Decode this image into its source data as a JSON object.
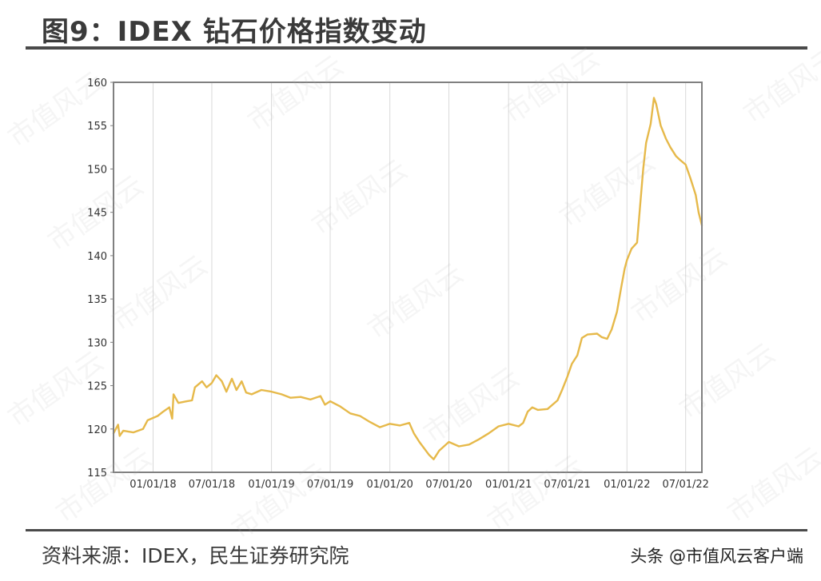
{
  "title": "图9：IDEX 钻石价格指数变动",
  "source": "资料来源：IDEX，民生证券研究院",
  "credit": "头条 @市值风云客户端",
  "watermark": "市值风云",
  "colors": {
    "line": "#E6B94A",
    "frame": "#808080",
    "grid": "#D9D9D9"
  },
  "chart_data": {
    "type": "line",
    "title": "",
    "xlabel": "",
    "ylabel": "",
    "ylim": [
      115,
      160
    ],
    "yticks": [
      115,
      120,
      125,
      130,
      135,
      140,
      145,
      150,
      155,
      160
    ],
    "x_range": [
      "2017-09-01",
      "2022-08-20"
    ],
    "xtick_labels": [
      "01/01/18",
      "07/01/18",
      "01/01/19",
      "07/01/19",
      "01/01/20",
      "07/01/20",
      "01/01/21",
      "07/01/21",
      "01/01/22",
      "07/01/22"
    ],
    "grid": "vertical",
    "series": [
      {
        "name": "",
        "points": [
          [
            "2017-09-01",
            119.5
          ],
          [
            "2017-09-15",
            120.5
          ],
          [
            "2017-09-20",
            119.2
          ],
          [
            "2017-10-01",
            119.8
          ],
          [
            "2017-11-01",
            119.6
          ],
          [
            "2017-12-01",
            120.0
          ],
          [
            "2017-12-15",
            121.0
          ],
          [
            "2018-01-15",
            121.5
          ],
          [
            "2018-02-01",
            122.0
          ],
          [
            "2018-02-20",
            122.5
          ],
          [
            "2018-03-01",
            121.2
          ],
          [
            "2018-03-05",
            124.0
          ],
          [
            "2018-03-20",
            123.0
          ],
          [
            "2018-04-15",
            123.2
          ],
          [
            "2018-05-01",
            123.3
          ],
          [
            "2018-05-10",
            124.8
          ],
          [
            "2018-06-01",
            125.5
          ],
          [
            "2018-06-15",
            124.8
          ],
          [
            "2018-07-01",
            125.3
          ],
          [
            "2018-07-15",
            126.2
          ],
          [
            "2018-08-01",
            125.5
          ],
          [
            "2018-08-15",
            124.3
          ],
          [
            "2018-09-01",
            125.8
          ],
          [
            "2018-09-15",
            124.5
          ],
          [
            "2018-10-01",
            125.5
          ],
          [
            "2018-10-15",
            124.2
          ],
          [
            "2018-11-01",
            124.0
          ],
          [
            "2018-12-01",
            124.5
          ],
          [
            "2019-01-01",
            124.3
          ],
          [
            "2019-02-01",
            124.0
          ],
          [
            "2019-03-01",
            123.6
          ],
          [
            "2019-04-01",
            123.7
          ],
          [
            "2019-05-01",
            123.4
          ],
          [
            "2019-06-01",
            123.8
          ],
          [
            "2019-06-15",
            122.8
          ],
          [
            "2019-07-01",
            123.2
          ],
          [
            "2019-08-01",
            122.6
          ],
          [
            "2019-09-01",
            121.8
          ],
          [
            "2019-10-01",
            121.5
          ],
          [
            "2019-11-01",
            120.8
          ],
          [
            "2019-12-01",
            120.2
          ],
          [
            "2020-01-01",
            120.6
          ],
          [
            "2020-02-01",
            120.4
          ],
          [
            "2020-03-01",
            120.7
          ],
          [
            "2020-03-15",
            119.5
          ],
          [
            "2020-04-01",
            118.5
          ],
          [
            "2020-05-01",
            117.0
          ],
          [
            "2020-05-15",
            116.5
          ],
          [
            "2020-06-01",
            117.5
          ],
          [
            "2020-07-01",
            118.5
          ],
          [
            "2020-08-01",
            118.0
          ],
          [
            "2020-09-01",
            118.2
          ],
          [
            "2020-10-01",
            118.8
          ],
          [
            "2020-11-01",
            119.5
          ],
          [
            "2020-12-01",
            120.3
          ],
          [
            "2021-01-01",
            120.6
          ],
          [
            "2021-02-01",
            120.3
          ],
          [
            "2021-02-15",
            120.7
          ],
          [
            "2021-03-01",
            122.0
          ],
          [
            "2021-03-15",
            122.5
          ],
          [
            "2021-04-01",
            122.2
          ],
          [
            "2021-05-01",
            122.3
          ],
          [
            "2021-06-01",
            123.3
          ],
          [
            "2021-06-15",
            124.5
          ],
          [
            "2021-07-01",
            126.0
          ],
          [
            "2021-07-15",
            127.5
          ],
          [
            "2021-08-01",
            128.5
          ],
          [
            "2021-08-15",
            130.5
          ],
          [
            "2021-09-01",
            130.9
          ],
          [
            "2021-10-01",
            131.0
          ],
          [
            "2021-10-15",
            130.6
          ],
          [
            "2021-11-01",
            130.4
          ],
          [
            "2021-11-15",
            131.5
          ],
          [
            "2021-12-01",
            133.5
          ],
          [
            "2021-12-15",
            136.5
          ],
          [
            "2021-12-25",
            138.5
          ],
          [
            "2022-01-01",
            139.5
          ],
          [
            "2022-01-15",
            140.8
          ],
          [
            "2022-02-01",
            141.5
          ],
          [
            "2022-02-10",
            145.5
          ],
          [
            "2022-02-20",
            150.0
          ],
          [
            "2022-03-01",
            153.0
          ],
          [
            "2022-03-15",
            155.2
          ],
          [
            "2022-03-25",
            158.2
          ],
          [
            "2022-04-01",
            157.5
          ],
          [
            "2022-04-15",
            155.0
          ],
          [
            "2022-05-01",
            153.5
          ],
          [
            "2022-05-15",
            152.5
          ],
          [
            "2022-06-01",
            151.5
          ],
          [
            "2022-06-15",
            151.0
          ],
          [
            "2022-07-01",
            150.5
          ],
          [
            "2022-07-15",
            149.0
          ],
          [
            "2022-08-01",
            147.0
          ],
          [
            "2022-08-10",
            145.0
          ],
          [
            "2022-08-20",
            143.5
          ]
        ]
      }
    ]
  }
}
